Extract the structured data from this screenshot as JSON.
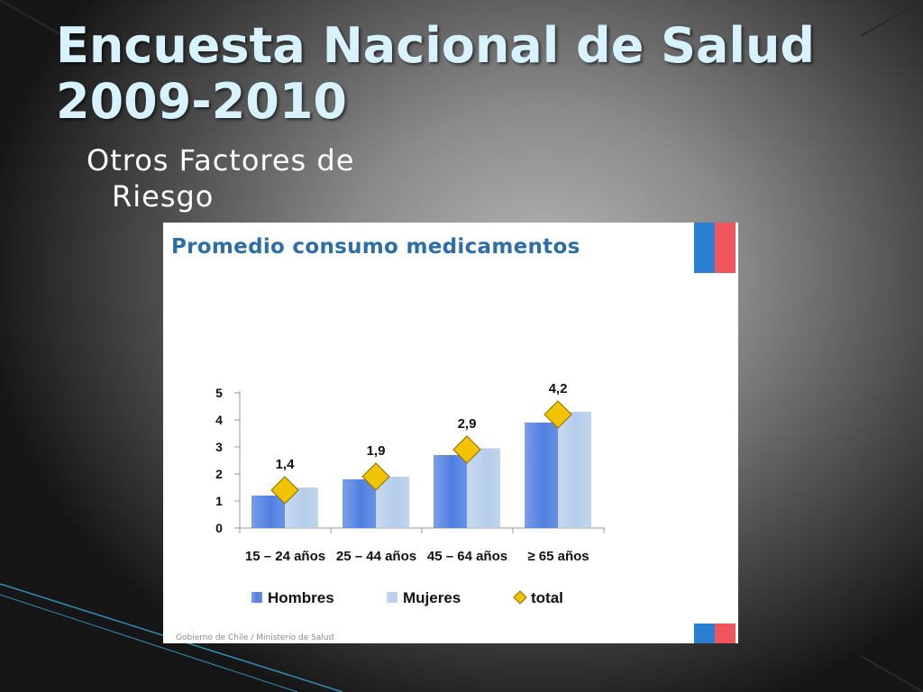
{
  "slide": {
    "title_line1": "Encuesta Nacional de Salud",
    "title_line2": "2009-2010",
    "subtitle_line1": "Otros Factores de",
    "subtitle_line2": "Riesgo",
    "colors": {
      "title": "#d6f3ff",
      "subtitle": "#ffffff",
      "flag_blue": "#2b7fd0",
      "flag_red": "#f0545c"
    }
  },
  "panel": {
    "title": "Promedio consumo medicamentos",
    "footer": "Gobierno de Chile / Ministerio de Salud"
  },
  "chart_data": {
    "type": "bar",
    "title": "Promedio consumo medicamentos",
    "categories": [
      "15 – 24 años",
      "25 – 44 años",
      "45 – 64 años",
      "≥ 65 años"
    ],
    "series": [
      {
        "name": "Hombres",
        "type": "bar",
        "values": [
          1.2,
          1.8,
          2.7,
          3.9
        ],
        "color": "#4f7fe0"
      },
      {
        "name": "Mujeres",
        "type": "bar",
        "values": [
          1.5,
          1.9,
          2.95,
          4.3
        ],
        "color": "#b5cdea"
      },
      {
        "name": "total",
        "type": "marker",
        "values": [
          1.4,
          1.9,
          2.9,
          4.2
        ],
        "labels": [
          "1,4",
          "1,9",
          "2,9",
          "4,2"
        ],
        "color": "#f2c400"
      }
    ],
    "yticks": [
      0,
      1,
      2,
      3,
      4,
      5
    ],
    "ylim": [
      0,
      5
    ],
    "xlabel": "",
    "ylabel": "",
    "legend_position": "bottom",
    "grid": false
  }
}
